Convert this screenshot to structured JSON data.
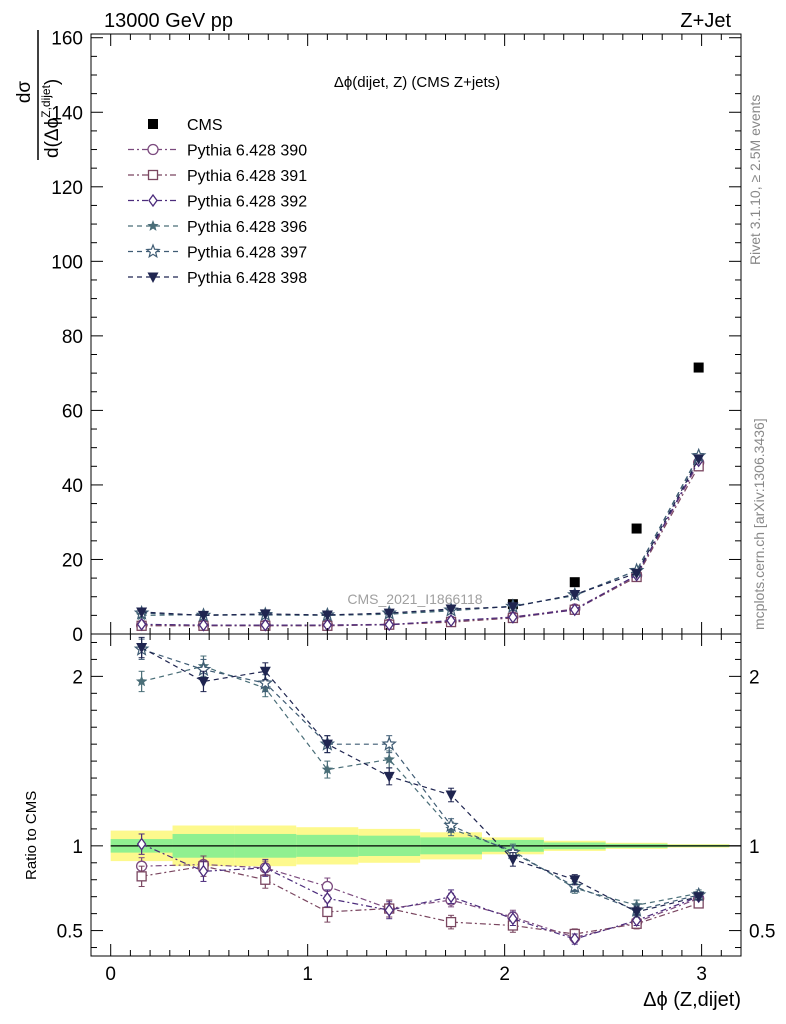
{
  "header": {
    "left": "13000 GeV pp",
    "right": "Z+Jet"
  },
  "watermark": "CMS_2021_I1866118",
  "side_labels": {
    "rivet": "Rivet 3.1.10, ≥ 2.5M events",
    "mcplots": "mcplots.cern.ch [arXiv:1306.3436]"
  },
  "colors": {
    "cms": "#000000",
    "p390": "#7b4a7e",
    "p391": "#7a4660",
    "p392": "#4c2c7c",
    "p396": "#4a6e78",
    "p397": "#3f5c74",
    "p398": "#1f2550",
    "band_stat": "#90f090",
    "band_total": "#fdf98d"
  },
  "chart_data": [
    {
      "type": "scatter",
      "panel": "main",
      "title": "Δϕ(dijet, Z) (CMS Z+jets)",
      "ylabel_num": "dσ",
      "ylabel_den": "d(Δϕ",
      "ylabel_sup": "Z,dijet",
      "ylabel_close": ")",
      "xlim": [
        -0.1,
        3.2
      ],
      "ylim": [
        0,
        161
      ],
      "yticks": [
        "0",
        "20",
        "40",
        "60",
        "80",
        "100",
        "120",
        "140",
        "160"
      ],
      "legend_position": "top-left",
      "x": [
        0.157,
        0.471,
        0.785,
        1.1,
        1.414,
        1.728,
        2.042,
        2.356,
        2.67,
        2.985
      ],
      "series": [
        {
          "name": "CMS",
          "key": "cms",
          "marker": "square-filled",
          "values": [
            null,
            null,
            null,
            null,
            null,
            null,
            8.0,
            13.9,
            28.3,
            71.5
          ]
        },
        {
          "name": "Pythia 6.428 390",
          "key": "p390",
          "marker": "circle-open",
          "values": [
            2.3,
            2.3,
            2.3,
            2.4,
            2.6,
            3.4,
            4.6,
            6.7,
            15.7,
            46.0
          ]
        },
        {
          "name": "Pythia 6.428 391",
          "key": "p391",
          "marker": "square-open",
          "values": [
            2.2,
            2.2,
            2.2,
            2.2,
            2.5,
            3.2,
            4.3,
            6.5,
            15.3,
            45.0
          ]
        },
        {
          "name": "Pythia 6.428 392",
          "key": "p392",
          "marker": "diamond-open",
          "values": [
            2.6,
            2.4,
            2.4,
            2.4,
            2.5,
            3.6,
            4.5,
            6.5,
            15.8,
            46.5
          ]
        },
        {
          "name": "Pythia 6.428 396",
          "key": "p396",
          "marker": "star-filled",
          "values": [
            5.0,
            5.2,
            5.1,
            5.0,
            5.3,
            6.2,
            7.5,
            10.3,
            17.0,
            48.0
          ]
        },
        {
          "name": "Pythia 6.428 397",
          "key": "p397",
          "marker": "star-open",
          "values": [
            5.6,
            5.0,
            5.2,
            5.1,
            5.6,
            6.4,
            7.4,
            10.5,
            17.0,
            47.8
          ]
        },
        {
          "name": "Pythia 6.428 398",
          "key": "p398",
          "marker": "triangle-down-filled",
          "values": [
            5.9,
            5.0,
            5.4,
            5.1,
            5.6,
            6.7,
            7.3,
            10.6,
            16.3,
            47.0
          ]
        }
      ]
    },
    {
      "type": "scatter",
      "panel": "ratio",
      "ylabel": "Ratio to CMS",
      "xlabel": "Δϕ (Z,dijet)",
      "xlim": [
        -0.1,
        3.2
      ],
      "ylim": [
        0.35,
        2.25
      ],
      "xticks": [
        "0",
        "1",
        "2",
        "3"
      ],
      "yticks": [
        {
          "value": 0.5,
          "label": "0.5"
        },
        {
          "value": 1,
          "label": "1"
        },
        {
          "value": 2,
          "label": "2"
        }
      ],
      "bands": {
        "edges": [
          0.0,
          0.314,
          0.628,
          0.942,
          1.257,
          1.571,
          1.885,
          2.199,
          2.513,
          2.827,
          3.141
        ],
        "stat": [
          0.04,
          0.07,
          0.07,
          0.065,
          0.06,
          0.05,
          0.035,
          0.02,
          0.012,
          0.006
        ],
        "total": [
          0.09,
          0.12,
          0.12,
          0.11,
          0.1,
          0.08,
          0.05,
          0.03,
          0.018,
          0.01
        ]
      },
      "x": [
        0.157,
        0.471,
        0.785,
        1.1,
        1.414,
        1.728,
        2.042,
        2.356,
        2.67,
        2.985
      ],
      "series": [
        {
          "key": "p390",
          "marker": "circle-open",
          "values": [
            0.88,
            0.89,
            0.87,
            0.76,
            0.63,
            0.68,
            0.58,
            0.46,
            0.55,
            0.69
          ],
          "errors": [
            0.05,
            0.05,
            0.04,
            0.05,
            0.05,
            0.04,
            0.04,
            0.03,
            0.03,
            0.02
          ]
        },
        {
          "key": "p391",
          "marker": "square-open",
          "values": [
            0.82,
            0.88,
            0.8,
            0.61,
            0.63,
            0.55,
            0.53,
            0.48,
            0.54,
            0.66
          ],
          "errors": [
            0.06,
            0.06,
            0.05,
            0.06,
            0.05,
            0.04,
            0.04,
            0.03,
            0.03,
            0.02
          ]
        },
        {
          "key": "p392",
          "marker": "diamond-open",
          "values": [
            1.01,
            0.85,
            0.87,
            0.69,
            0.62,
            0.7,
            0.57,
            0.45,
            0.56,
            0.7
          ],
          "errors": [
            0.06,
            0.06,
            0.05,
            0.05,
            0.05,
            0.04,
            0.04,
            0.03,
            0.03,
            0.02
          ]
        },
        {
          "key": "p396",
          "marker": "star-filled",
          "values": [
            1.97,
            2.06,
            1.93,
            1.45,
            1.51,
            1.1,
            0.97,
            0.75,
            0.65,
            0.72
          ],
          "errors": [
            0.06,
            0.06,
            0.05,
            0.05,
            0.05,
            0.04,
            0.04,
            0.03,
            0.03,
            0.02
          ]
        },
        {
          "key": "p397",
          "marker": "star-open",
          "values": [
            2.16,
            2.04,
            1.96,
            1.6,
            1.6,
            1.12,
            0.96,
            0.76,
            0.62,
            0.71
          ],
          "errors": [
            0.06,
            0.06,
            0.05,
            0.05,
            0.05,
            0.04,
            0.04,
            0.03,
            0.03,
            0.02
          ]
        },
        {
          "key": "p398",
          "marker": "triangle-down-filled",
          "values": [
            2.17,
            1.97,
            2.03,
            1.6,
            1.41,
            1.3,
            0.92,
            0.8,
            0.61,
            0.7
          ],
          "errors": [
            0.06,
            0.06,
            0.05,
            0.05,
            0.05,
            0.04,
            0.04,
            0.03,
            0.03,
            0.02
          ]
        }
      ]
    }
  ]
}
